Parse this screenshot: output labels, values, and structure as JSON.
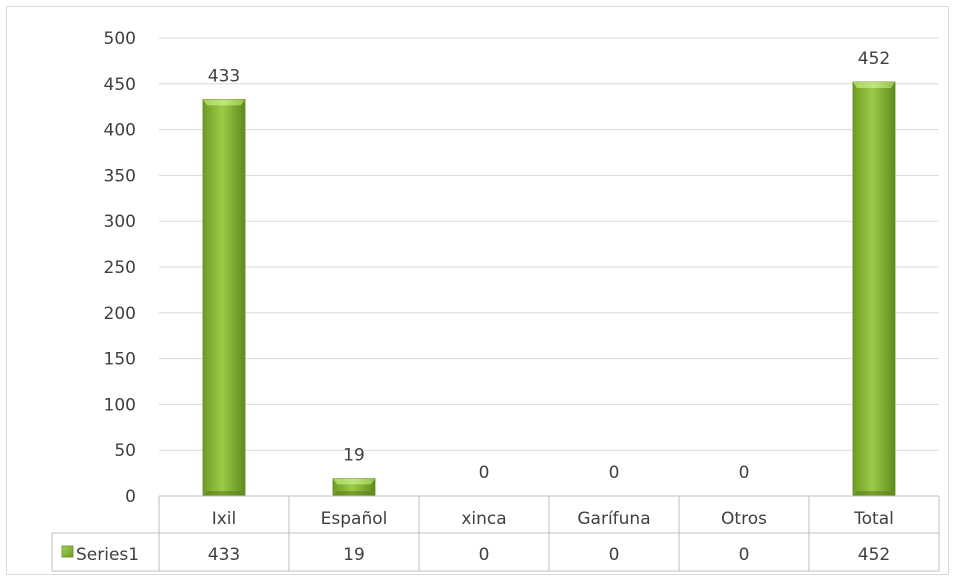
{
  "chart_data": {
    "type": "bar",
    "title": "",
    "xlabel": "",
    "ylabel": "",
    "categories": [
      "Ixil",
      "Español",
      "xinca",
      "Garífuna",
      "Otros",
      "Total"
    ],
    "series": [
      {
        "name": "Series1",
        "values": [
          433,
          19,
          0,
          0,
          0,
          452
        ],
        "color": "#8fbf3a"
      }
    ],
    "ylim": [
      0,
      500
    ],
    "yticks": [
      0,
      50,
      100,
      150,
      200,
      250,
      300,
      350,
      400,
      450,
      500
    ],
    "grid": true,
    "data_labels": true,
    "data_table": true,
    "legend": "in-data-table"
  }
}
